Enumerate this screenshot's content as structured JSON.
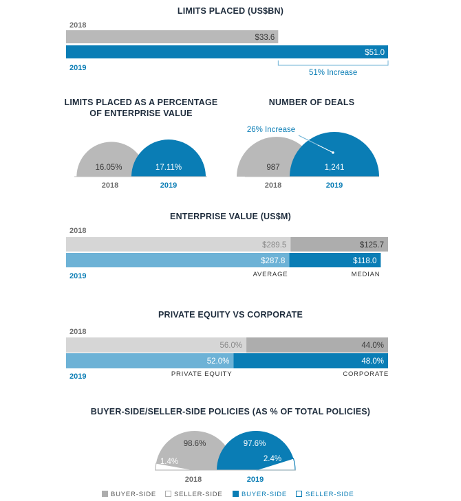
{
  "colors": {
    "grey_2018": "#b9b9b9",
    "grey_dark": "#adadad",
    "grey_light": "#d6d6d6",
    "blue": "#0a7db5",
    "blue_light": "#6db2d6",
    "year_2018_text": "#6e6e6e",
    "year_2019_text": "#0a7db5"
  },
  "chart_data": [
    {
      "type": "bar",
      "title": "LIMITS PLACED (US$BN)",
      "categories": [
        "2018",
        "2019"
      ],
      "values": [
        33.6,
        51.0
      ],
      "value_labels": [
        "$33.6",
        "$51.0"
      ],
      "annotation": "51% Increase",
      "xlim": [
        0,
        51.0
      ]
    },
    {
      "type": "area",
      "shape": "semicircle",
      "title": "LIMITS PLACED AS A PERCENTAGE OF ENTERPRISE VALUE",
      "categories": [
        "2018",
        "2019"
      ],
      "values": [
        16.05,
        17.11
      ],
      "value_labels": [
        "16.05%",
        "17.11%"
      ]
    },
    {
      "type": "area",
      "shape": "semicircle",
      "title": "NUMBER OF DEALS",
      "categories": [
        "2018",
        "2019"
      ],
      "values": [
        987,
        1241
      ],
      "value_labels": [
        "987",
        "1,241"
      ],
      "annotation": "26% Increase"
    },
    {
      "type": "bar",
      "stacked": true,
      "title": "ENTERPRISE VALUE (US$M)",
      "categories": [
        "2018",
        "2019"
      ],
      "series": [
        {
          "name": "AVERAGE",
          "values": [
            289.5,
            287.8
          ],
          "value_labels": [
            "$289.5",
            "$287.8"
          ]
        },
        {
          "name": "MEDIAN",
          "values": [
            125.7,
            118.0
          ],
          "value_labels": [
            "$125.7",
            "$118.0"
          ]
        }
      ]
    },
    {
      "type": "bar",
      "stacked": true,
      "title": "PRIVATE EQUITY VS CORPORATE",
      "categories": [
        "2018",
        "2019"
      ],
      "series": [
        {
          "name": "PRIVATE EQUITY",
          "values": [
            56.0,
            52.0
          ],
          "value_labels": [
            "56.0%",
            "52.0%"
          ]
        },
        {
          "name": "CORPORATE",
          "values": [
            44.0,
            48.0
          ],
          "value_labels": [
            "44.0%",
            "48.0%"
          ]
        }
      ]
    },
    {
      "type": "pie",
      "shape": "semicircle",
      "title": "BUYER-SIDE/SELLER-SIDE POLICIES (AS % OF TOTAL POLICIES)",
      "categories": [
        "2018",
        "2019"
      ],
      "series": [
        {
          "name": "BUYER-SIDE",
          "values": [
            98.6,
            97.6
          ],
          "value_labels": [
            "98.6%",
            "97.6%"
          ]
        },
        {
          "name": "SELLER-SIDE",
          "values": [
            1.4,
            2.4
          ],
          "value_labels": [
            "1.4%",
            "2.4%"
          ]
        }
      ],
      "legend": {
        "placement": "bottom",
        "entries": [
          {
            "label": "BUYER-SIDE",
            "year": "2018",
            "fill": "#adadad",
            "hollow": false
          },
          {
            "label": "SELLER-SIDE",
            "year": "2018",
            "fill": "#adadad",
            "hollow": true
          },
          {
            "label": "BUYER-SIDE",
            "year": "2019",
            "fill": "#0a7db5",
            "hollow": false
          },
          {
            "label": "SELLER-SIDE",
            "year": "2019",
            "fill": "#0a7db5",
            "hollow": true
          }
        ]
      }
    }
  ]
}
